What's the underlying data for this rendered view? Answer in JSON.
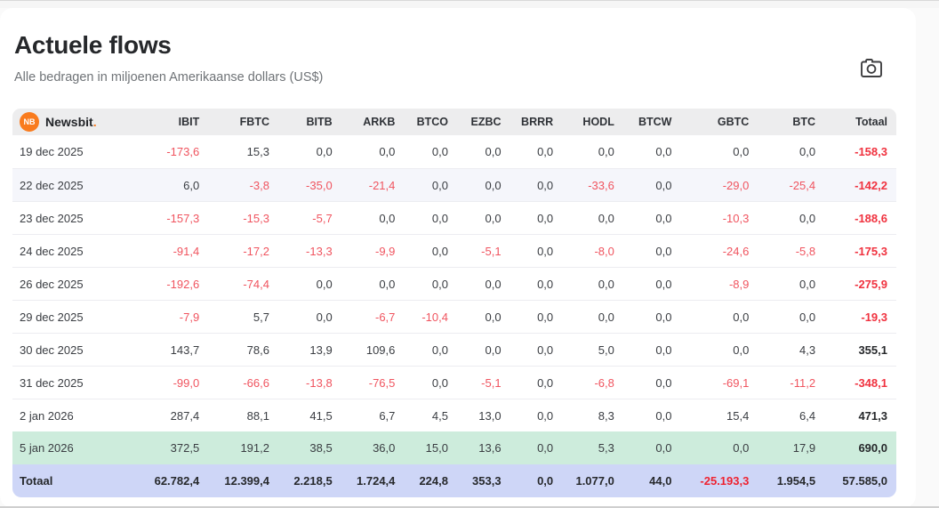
{
  "page": {
    "title": "Actuele flows",
    "subtitle": "Alle bedragen in miljoenen Amerikaanse dollars (US$)"
  },
  "brand": {
    "badge": "NB",
    "name": "Newsbit",
    "period": "."
  },
  "icons": {
    "camera": "camera-icon"
  },
  "colors": {
    "accent_orange": "#f97b1d",
    "negative_red": "#f0545f",
    "green_row_bg": "#cdecdc",
    "total_row_bg": "#ced6f7",
    "header_bg": "#ededee"
  },
  "chart_data": {
    "type": "table",
    "columns": [
      "IBIT",
      "FBTC",
      "BITB",
      "ARKB",
      "BTCO",
      "EZBC",
      "BRRR",
      "HODL",
      "BTCW",
      "GBTC",
      "BTC",
      "Totaal"
    ],
    "rows": [
      {
        "label": "19 dec 2025",
        "style": "plain",
        "values": [
          "-173,6",
          "15,3",
          "0,0",
          "0,0",
          "0,0",
          "0,0",
          "0,0",
          "0,0",
          "0,0",
          "0,0",
          "0,0",
          "-158,3"
        ]
      },
      {
        "label": "22 dec 2025",
        "style": "hover",
        "values": [
          "6,0",
          "-3,8",
          "-35,0",
          "-21,4",
          "0,0",
          "0,0",
          "0,0",
          "-33,6",
          "0,0",
          "-29,0",
          "-25,4",
          "-142,2"
        ]
      },
      {
        "label": "23 dec 2025",
        "style": "plain",
        "values": [
          "-157,3",
          "-15,3",
          "-5,7",
          "0,0",
          "0,0",
          "0,0",
          "0,0",
          "0,0",
          "0,0",
          "-10,3",
          "0,0",
          "-188,6"
        ]
      },
      {
        "label": "24 dec 2025",
        "style": "plain",
        "values": [
          "-91,4",
          "-17,2",
          "-13,3",
          "-9,9",
          "0,0",
          "-5,1",
          "0,0",
          "-8,0",
          "0,0",
          "-24,6",
          "-5,8",
          "-175,3"
        ]
      },
      {
        "label": "26 dec 2025",
        "style": "plain",
        "values": [
          "-192,6",
          "-74,4",
          "0,0",
          "0,0",
          "0,0",
          "0,0",
          "0,0",
          "0,0",
          "0,0",
          "-8,9",
          "0,0",
          "-275,9"
        ]
      },
      {
        "label": "29 dec 2025",
        "style": "plain",
        "values": [
          "-7,9",
          "5,7",
          "0,0",
          "-6,7",
          "-10,4",
          "0,0",
          "0,0",
          "0,0",
          "0,0",
          "0,0",
          "0,0",
          "-19,3"
        ]
      },
      {
        "label": "30 dec 2025",
        "style": "plain",
        "values": [
          "143,7",
          "78,6",
          "13,9",
          "109,6",
          "0,0",
          "0,0",
          "0,0",
          "5,0",
          "0,0",
          "0,0",
          "4,3",
          "355,1"
        ]
      },
      {
        "label": "31 dec 2025",
        "style": "plain",
        "values": [
          "-99,0",
          "-66,6",
          "-13,8",
          "-76,5",
          "0,0",
          "-5,1",
          "0,0",
          "-6,8",
          "0,0",
          "-69,1",
          "-11,2",
          "-348,1"
        ]
      },
      {
        "label": "2 jan 2026",
        "style": "plain",
        "values": [
          "287,4",
          "88,1",
          "41,5",
          "6,7",
          "4,5",
          "13,0",
          "0,0",
          "8,3",
          "0,0",
          "15,4",
          "6,4",
          "471,3"
        ]
      },
      {
        "label": "5 jan 2026",
        "style": "green",
        "values": [
          "372,5",
          "191,2",
          "38,5",
          "36,0",
          "15,0",
          "13,6",
          "0,0",
          "5,3",
          "0,0",
          "0,0",
          "17,9",
          "690,0"
        ]
      },
      {
        "label": "Totaal",
        "style": "total",
        "values": [
          "62.782,4",
          "12.399,4",
          "2.218,5",
          "1.724,4",
          "224,8",
          "353,3",
          "0,0",
          "1.077,0",
          "44,0",
          "-25.193,3",
          "1.954,5",
          "57.585,0"
        ]
      }
    ]
  }
}
